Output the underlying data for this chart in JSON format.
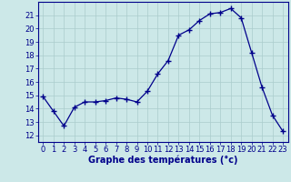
{
  "x": [
    0,
    1,
    2,
    3,
    4,
    5,
    6,
    7,
    8,
    9,
    10,
    11,
    12,
    13,
    14,
    15,
    16,
    17,
    18,
    19,
    20,
    21,
    22,
    23
  ],
  "y": [
    14.9,
    13.8,
    12.7,
    14.1,
    14.5,
    14.5,
    14.6,
    14.8,
    14.7,
    14.5,
    15.3,
    16.6,
    17.6,
    19.5,
    19.9,
    20.6,
    21.1,
    21.2,
    21.5,
    20.8,
    18.2,
    15.6,
    13.5,
    12.3
  ],
  "xlabel": "Graphe des températures (°c)",
  "ylim": [
    11.5,
    22.0
  ],
  "xlim": [
    -0.5,
    23.5
  ],
  "yticks": [
    12,
    13,
    14,
    15,
    16,
    17,
    18,
    19,
    20,
    21
  ],
  "xticks": [
    0,
    1,
    2,
    3,
    4,
    5,
    6,
    7,
    8,
    9,
    10,
    11,
    12,
    13,
    14,
    15,
    16,
    17,
    18,
    19,
    20,
    21,
    22,
    23
  ],
  "xtick_labels": [
    "0",
    "1",
    "2",
    "3",
    "4",
    "5",
    "6",
    "7",
    "8",
    "9",
    "10",
    "11",
    "12",
    "13",
    "14",
    "15",
    "16",
    "17",
    "18",
    "19",
    "20",
    "21",
    "22",
    "23"
  ],
  "line_color": "#00008b",
  "marker": "+",
  "marker_size": 4.0,
  "marker_lw": 1.0,
  "bg_color": "#cce8e8",
  "grid_color": "#aacccc",
  "axis_color": "#00008b",
  "label_color": "#00008b",
  "tick_fontsize": 6.0,
  "xlabel_fontsize": 7.0,
  "xlabel_bold": true
}
